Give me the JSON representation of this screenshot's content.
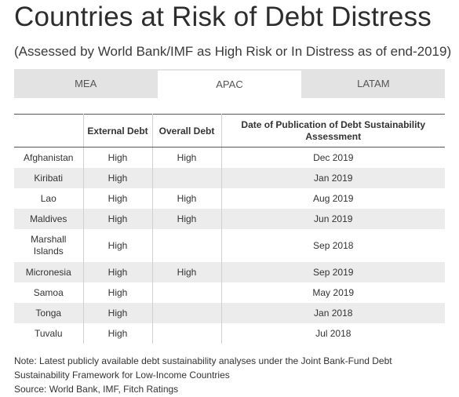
{
  "title": "Countries at Risk of Debt Distress",
  "subtitle": "(Assessed by World Bank/IMF as High Risk or In Distress as of end-2019)",
  "tabs": [
    {
      "label": "MEA",
      "active": false
    },
    {
      "label": "APAC",
      "active": true
    },
    {
      "label": "LATAM",
      "active": false
    }
  ],
  "table": {
    "headers": [
      "",
      "External Debt",
      "Overall Debt",
      "Date of Publication of Debt Sustainability Assessment"
    ],
    "rows": [
      [
        "Afghanistan",
        "High",
        "High",
        "Dec 2019"
      ],
      [
        "Kiribati",
        "High",
        "",
        "Jan 2019"
      ],
      [
        "Lao",
        "High",
        "High",
        "Aug 2019"
      ],
      [
        "Maldives",
        "High",
        "High",
        "Jun 2019"
      ],
      [
        "Marshall Islands",
        "High",
        "",
        "Sep 2018"
      ],
      [
        "Micronesia",
        "High",
        "High",
        "Sep 2019"
      ],
      [
        "Samoa",
        "High",
        "",
        "May 2019"
      ],
      [
        "Tonga",
        "High",
        "",
        "Jan 2018"
      ],
      [
        "Tuvalu",
        "High",
        "",
        "Jul 2018"
      ]
    ]
  },
  "note": {
    "line1": "Note: Latest publicly available debt sustainability analyses under the Joint Bank-Fund Debt",
    "line2": "Sustainability Framework for Low-Income Countries",
    "source": "Source: World Bank, IMF, Fitch Ratings"
  }
}
